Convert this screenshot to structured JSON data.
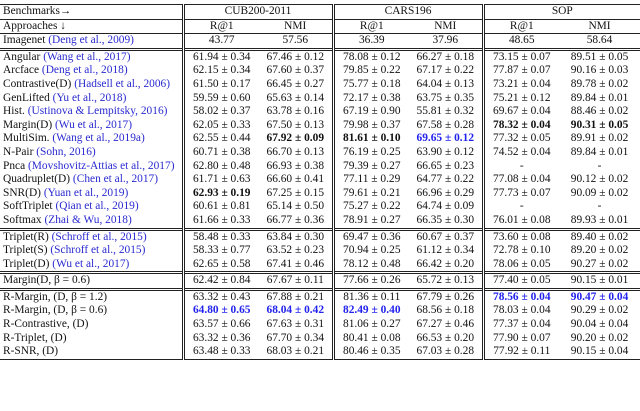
{
  "cite_color": "#2a2ad0",
  "header": {
    "benchmarks_label": "Benchmarks→",
    "benchmarks": [
      "CUB200-2011",
      "CARS196",
      "SOP"
    ],
    "approaches_label": "Approaches ↓",
    "metrics": [
      "R@1",
      "NMI",
      "R@1",
      "NMI",
      "R@1",
      "NMI"
    ]
  },
  "groups": [
    {
      "rows": [
        {
          "approach": {
            "name": "Imagenet",
            "cite": "(Deng et al., 2009)"
          },
          "cells": [
            "43.77",
            "57.56",
            "36.39",
            "37.96",
            "48.65",
            "58.64"
          ]
        }
      ]
    },
    {
      "rows": [
        {
          "approach": {
            "name": "Angular",
            "cite": "(Wang et al., 2017)"
          },
          "cells": [
            "61.94 ± 0.34",
            "67.46 ± 0.12",
            "78.08 ± 0.12",
            "66.27 ± 0.18",
            "73.15 ± 0.07",
            "89.51 ± 0.05"
          ]
        },
        {
          "approach": {
            "name": "Arcface",
            "cite": "(Deng et al., 2018)"
          },
          "cells": [
            "62.15 ± 0.34",
            "67.60 ± 0.37",
            "79.85 ± 0.22",
            "67.17 ± 0.22",
            "77.87 ± 0.07",
            "90.16 ± 0.03"
          ]
        },
        {
          "approach": {
            "name": "Contrastive(D)",
            "cite": "(Hadsell et al., 2006)"
          },
          "cells": [
            "61.50 ± 0.17",
            "66.45 ± 0.27",
            "75.77 ± 0.18",
            "64.04 ± 0.13",
            "73.21 ± 0.04",
            "89.78 ± 0.02"
          ]
        },
        {
          "approach": {
            "name": "GenLifted",
            "cite": "(Yu et al., 2018)"
          },
          "cells": [
            "59.59 ± 0.60",
            "65.63 ± 0.14",
            "72.17 ± 0.38",
            "63.75 ± 0.35",
            "75.21 ± 0.12",
            "89.84 ± 0.01"
          ]
        },
        {
          "approach": {
            "name": "Hist.",
            "cite": "(Ustinova & Lempitsky, 2016)"
          },
          "cells": [
            "58.02 ± 0.37",
            "63.78 ± 0.16",
            "67.19 ± 0.90",
            "55.81 ± 0.32",
            "69.67 ± 0.04",
            "88.46 ± 0.02"
          ]
        },
        {
          "approach": {
            "name": "Margin(D)",
            "cite": "(Wu et al., 2017)"
          },
          "cells": [
            "62.05 ± 0.33",
            "67.50 ± 0.13",
            "79.98 ± 0.37",
            "67.58 ± 0.28",
            {
              "text": "78.32 ± 0.04",
              "bold": true
            },
            {
              "text": "90.31 ± 0.05",
              "bold": true
            }
          ]
        },
        {
          "approach": {
            "name": "MultiSim.",
            "cite": "(Wang et al., 2019a)"
          },
          "cells": [
            "62.55 ± 0.44",
            {
              "text": "67.92 ± 0.09",
              "bold": true
            },
            {
              "text": "81.61 ± 0.10",
              "bold": true
            },
            {
              "text": "69.65 ± 0.12",
              "bold": true,
              "color": "#2222ee"
            },
            "77.32 ± 0.05",
            "89.91 ± 0.02"
          ]
        },
        {
          "approach": {
            "name": "N-Pair",
            "cite": "(Sohn, 2016)"
          },
          "cells": [
            "60.71 ± 0.38",
            "66.70 ± 0.13",
            "76.19 ± 0.25",
            "63.90 ± 0.12",
            "74.52 ± 0.04",
            "89.84 ± 0.01"
          ]
        },
        {
          "approach": {
            "name": "Pnca",
            "cite": "(Movshovitz-Attias et al., 2017)"
          },
          "cells": [
            "62.80 ± 0.48",
            "66.93 ± 0.38",
            "79.39 ± 0.27",
            "66.65 ± 0.23",
            "-",
            "-"
          ]
        },
        {
          "approach": {
            "name": "Quadruplet(D)",
            "cite": "(Chen et al., 2017)"
          },
          "cells": [
            "61.71 ± 0.63",
            "66.60 ± 0.41",
            "77.11 ± 0.29",
            "64.77 ± 0.22",
            "77.08 ± 0.04",
            "90.12 ± 0.02"
          ]
        },
        {
          "approach": {
            "name": "SNR(D)",
            "cite": "(Yuan et al., 2019)"
          },
          "cells": [
            {
              "text": "62.93 ± 0.19",
              "bold": true
            },
            "67.25 ± 0.15",
            "79.61 ± 0.21",
            "66.96 ± 0.29",
            "77.73 ± 0.07",
            "90.09 ± 0.02"
          ]
        },
        {
          "approach": {
            "name": "SoftTriplet",
            "cite": "(Qian et al., 2019)"
          },
          "cells": [
            "60.61 ± 0.81",
            "65.14 ± 0.50",
            "75.27 ± 0.22",
            "64.74 ± 0.09",
            "-",
            "-"
          ]
        },
        {
          "approach": {
            "name": "Softmax",
            "cite": "(Zhai & Wu, 2018)"
          },
          "cells": [
            "61.66 ± 0.33",
            "66.77 ± 0.36",
            "78.91 ± 0.27",
            "66.35 ± 0.30",
            "76.01 ± 0.08",
            "89.93 ± 0.01"
          ]
        }
      ]
    },
    {
      "rows": [
        {
          "approach": {
            "name": "Triplet(R)",
            "cite": "(Schroff et al., 2015)"
          },
          "cells": [
            "58.48 ± 0.33",
            "63.84 ± 0.30",
            "69.47 ± 0.36",
            "60.67 ± 0.37",
            "73.60 ± 0.08",
            "89.40 ± 0.02"
          ]
        },
        {
          "approach": {
            "name": "Triplet(S)",
            "cite": "(Schroff et al., 2015)"
          },
          "cells": [
            "58.33 ± 0.77",
            "63.52 ± 0.23",
            "70.94 ± 0.25",
            "61.12 ± 0.34",
            "72.78 ± 0.10",
            "89.20 ± 0.02"
          ]
        },
        {
          "approach": {
            "name": "Triplet(D)",
            "cite": "(Wu et al., 2017)"
          },
          "cells": [
            "62.65 ± 0.58",
            "67.41 ± 0.46",
            "78.12 ± 0.48",
            "66.42 ± 0.20",
            "78.06 ± 0.05",
            "90.27 ± 0.02"
          ]
        }
      ]
    },
    {
      "rows": [
        {
          "approach": {
            "name": "Margin(D, β = 0.6)"
          },
          "cells": [
            "62.42 ± 0.84",
            "67.67 ± 0.11",
            "77.66 ± 0.26",
            "65.72 ± 0.13",
            "77.40 ± 0.05",
            "90.15 ± 0.01"
          ]
        }
      ]
    },
    {
      "rows": [
        {
          "approach": {
            "name": "R-Margin, (D, β = 1.2)"
          },
          "cells": [
            "63.32 ± 0.43",
            "67.88 ± 0.21",
            "81.36 ± 0.11",
            "67.79 ± 0.26",
            {
              "text": "78.56 ± 0.04",
              "bold": true,
              "color": "#2222ee"
            },
            {
              "text": "90.47 ± 0.04",
              "bold": true,
              "color": "#2222ee"
            }
          ]
        },
        {
          "approach": {
            "name": "R-Margin, (D, β = 0.6)"
          },
          "cells": [
            {
              "text": "64.80 ± 0.65",
              "bold": true,
              "color": "#2222ee"
            },
            {
              "text": "68.04 ± 0.42",
              "bold": true,
              "color": "#2222ee"
            },
            {
              "text": "82.49 ± 0.40",
              "bold": true,
              "color": "#2222ee"
            },
            "68.56 ± 0.18",
            "78.03 ± 0.04",
            "90.29 ± 0.02"
          ]
        },
        {
          "approach": {
            "name": "R-Contrastive, (D)"
          },
          "cells": [
            "63.57 ± 0.66",
            "67.63 ± 0.31",
            "81.06 ± 0.27",
            "67.27 ± 0.46",
            "77.37 ± 0.04",
            "90.04 ± 0.04"
          ]
        },
        {
          "approach": {
            "name": "R-Triplet, (D)"
          },
          "cells": [
            "63.32 ± 0.36",
            "67.70 ± 0.34",
            "80.41 ± 0.08",
            "66.53 ± 0.20",
            "77.90 ± 0.07",
            "90.20 ± 0.02"
          ]
        },
        {
          "approach": {
            "name": "R-SNR, (D)"
          },
          "cells": [
            "63.48 ± 0.33",
            "68.03 ± 0.21",
            "80.46 ± 0.35",
            "67.03 ± 0.28",
            "77.92 ± 0.11",
            "90.15 ± 0.04"
          ]
        }
      ]
    }
  ]
}
